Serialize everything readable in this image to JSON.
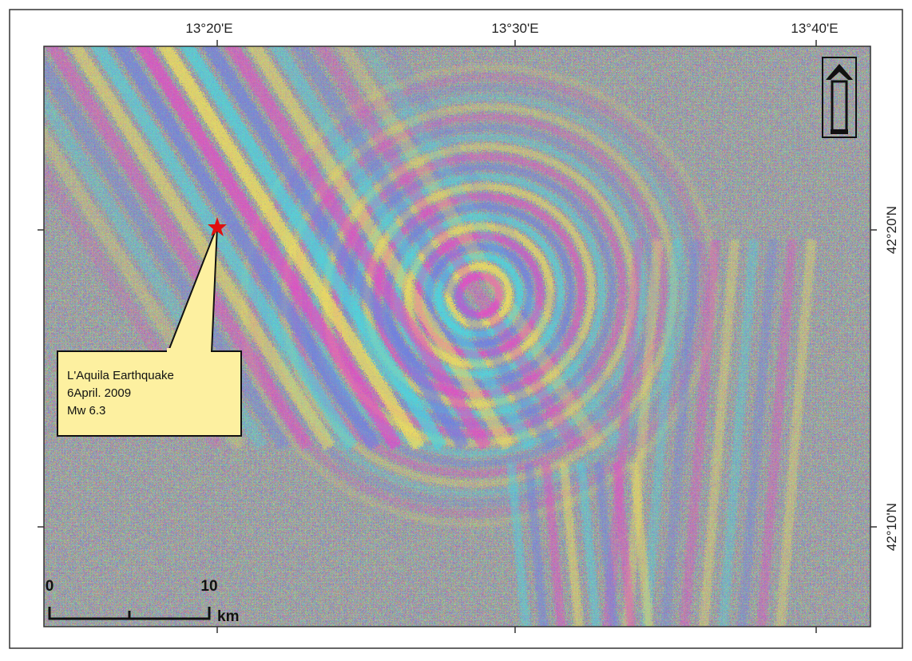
{
  "map": {
    "lon_labels": [
      "13°20'E",
      "13°30'E",
      "13°40'E"
    ],
    "lat_labels": [
      "42°20'N",
      "42°10'N"
    ],
    "callout": {
      "lines": [
        "L'Aquila Earthquake",
        "6April. 2009",
        "Mw 6.3"
      ]
    },
    "scale_bar": {
      "start": "0",
      "end": "10",
      "unit": "km"
    }
  }
}
